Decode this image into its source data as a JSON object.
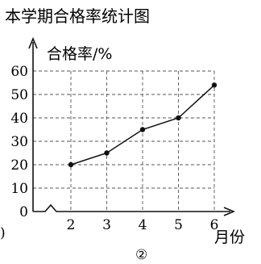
{
  "chart_data": {
    "type": "line",
    "title": "本学期合格率统计图",
    "ylabel": "合格率/%",
    "xlabel": "月份",
    "x": [
      2,
      3,
      4,
      5,
      6
    ],
    "values": [
      20,
      25,
      35,
      40,
      54
    ],
    "ylim": [
      0,
      60
    ],
    "yticks": [
      0,
      10,
      20,
      30,
      40,
      50,
      60
    ],
    "xticks": [
      2,
      3,
      4,
      5,
      6
    ],
    "grid": true,
    "axis_break": true
  },
  "caption": "②",
  "edge_mark": ")"
}
